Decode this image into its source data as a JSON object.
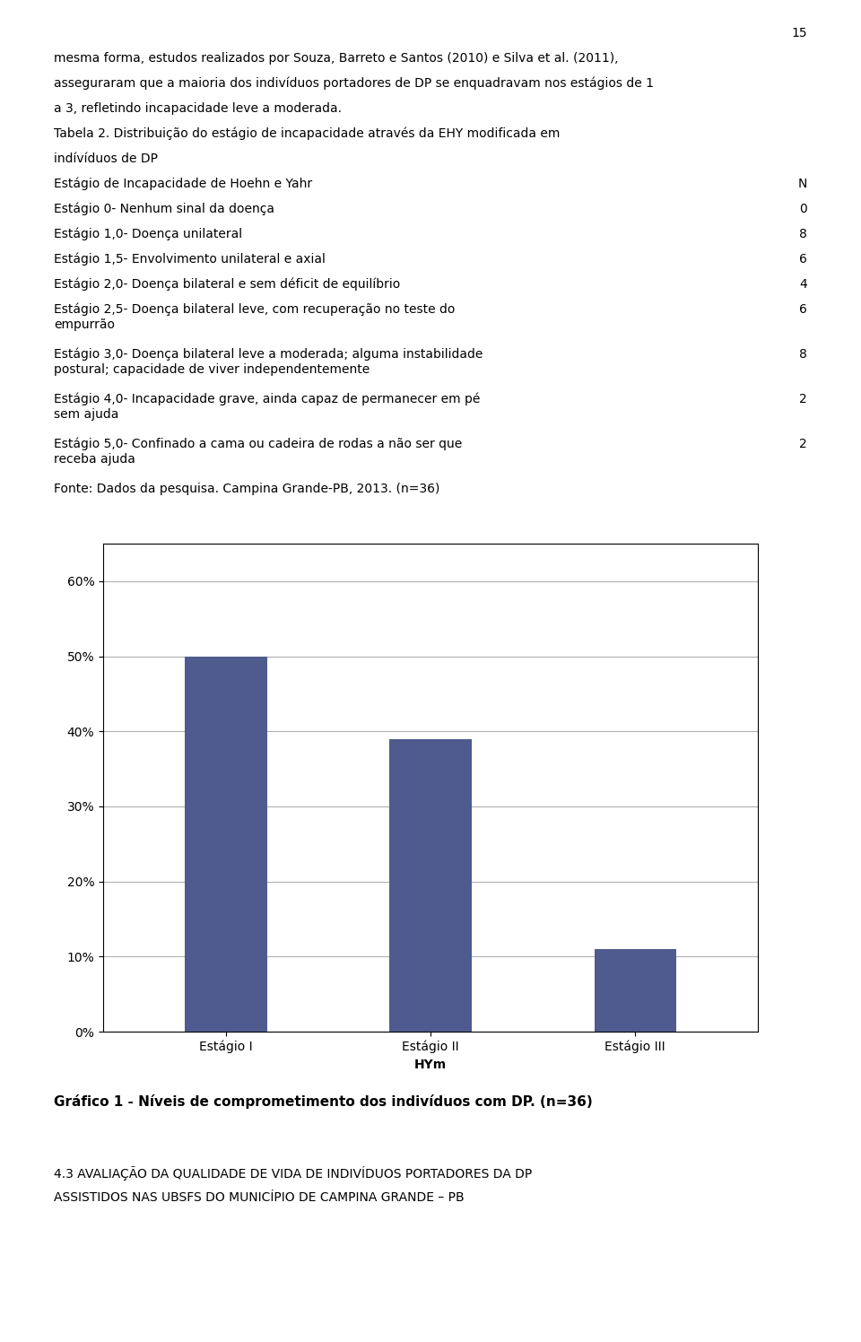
{
  "chart_data": {
    "type": "bar",
    "title": "Gráfico 1 - Níveis de comprometimento dos indivíduos com DP. (n=36)",
    "x_label": "HYm",
    "categories": [
      "Estágio I",
      "Estágio II",
      "Estágio III"
    ],
    "values": [
      50,
      39,
      11
    ],
    "color": "#4f5b8e",
    "ylim": [
      0,
      65
    ],
    "yticks": [
      {
        "value": 0,
        "label": "0%"
      },
      {
        "value": 10,
        "label": "10%"
      },
      {
        "value": 20,
        "label": "20%"
      },
      {
        "value": 30,
        "label": "30%"
      },
      {
        "value": 40,
        "label": "40%"
      },
      {
        "value": 50,
        "label": "50%"
      },
      {
        "value": 60,
        "label": "60%"
      }
    ],
    "grid": true,
    "annotations": [
      [
        "15"
      ],
      "mesma forma, estudos realizados por Souza, Barreto e Santos (2010) e Silva et al. (2011),",
      "asseguraram que a maioria dos indivíduos portadores de DP se enquadravam nos estágios de 1",
      "a 3, refletindo incapacidade leve a moderada.",
      "Tabela 2. Distribuição do estágio de incapacidade através da EHY modificada em",
      "indívíduos de DP",
      [
        "Estágio de Incapacidade de Hoehn e Yahr",
        "N"
      ],
      [
        "Estágio 0- Nenhum sinal da doença",
        "0"
      ],
      [
        "Estágio 1,0- Doença unilateral",
        "8"
      ],
      [
        "Estágio 1,5- Envolvimento unilateral e axial",
        "6"
      ],
      [
        "Estágio 2,0- Doença bilateral e sem déficit de equilíbrio",
        "4"
      ],
      [
        "Estágio 2,5- Doença bilateral leve, com recuperação no teste do\nempurrão",
        "6"
      ],
      [
        "Estágio 3,0- Doença bilateral leve a moderada; alguma instabilidade\npostural; capacidade de viver independentemente",
        "8"
      ],
      [
        "Estágio 4,0- Incapacidade grave, ainda capaz de permanecer em pé\nsem ajuda",
        "2"
      ],
      [
        "Estágio 5,0- Confinado a cama ou cadeira de rodas a não ser que\nreceba ajuda",
        "2"
      ],
      "Fonte: Dados da pesquisa. Campina Grande-PB, 2013. (n=36)",
      "4.3 AVALIAÇÃO DA QUALIDADE DE VIDA DE INDIVÍDUOS PORTADORES DA DP",
      "ASSISTIDOS NAS UBSFS DO MUNICÍPIO DE CAMPINA GRANDE – PB"
    ]
  }
}
